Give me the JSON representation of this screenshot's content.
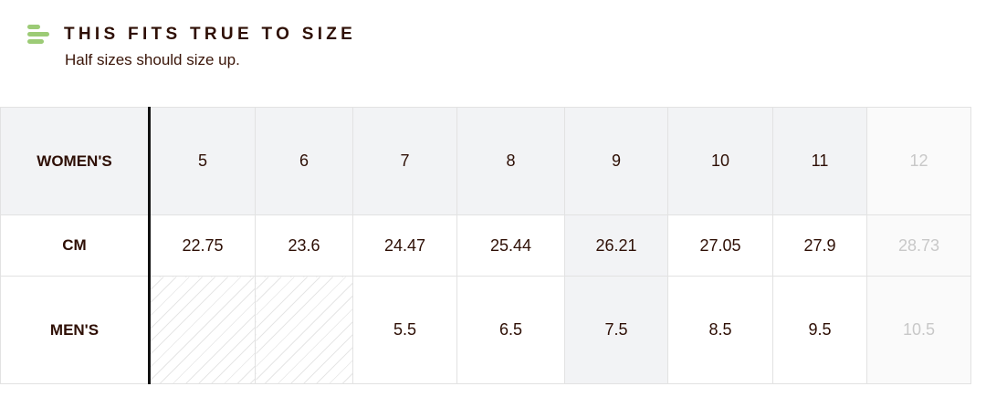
{
  "header": {
    "icon": "fit-lines-icon",
    "icon_color": "#9ccb76",
    "title": "THIS FITS TRUE TO SIZE",
    "subtitle": "Half sizes should size up."
  },
  "size_chart": {
    "rows": [
      {
        "label": "WOMEN'S",
        "values": [
          "5",
          "6",
          "7",
          "8",
          "9",
          "10",
          "11",
          "12"
        ]
      },
      {
        "label": "CM",
        "values": [
          "22.75",
          "23.6",
          "24.47",
          "25.44",
          "26.21",
          "27.05",
          "27.9",
          "28.73"
        ]
      },
      {
        "label": "MEN'S",
        "values": [
          "",
          "",
          "5.5",
          "6.5",
          "7.5",
          "8.5",
          "9.5",
          "10.5"
        ]
      }
    ],
    "highlighted_size": "9",
    "unavailable_size": "12"
  }
}
